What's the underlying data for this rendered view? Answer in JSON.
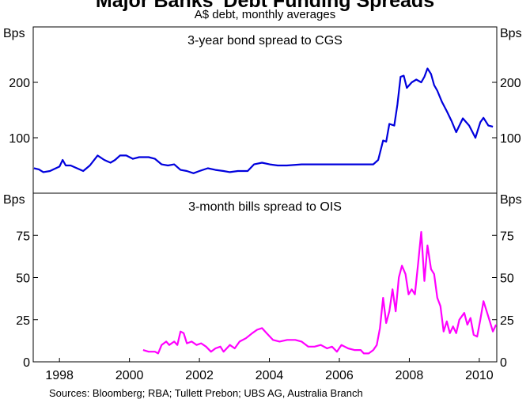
{
  "title": "Major Banks' Debt Funding Spreads",
  "subtitle": "A$ debt, monthly averages",
  "source": "Sources: Bloomberg; RBA; Tullett Prebon; UBS AG, Australia Branch",
  "chart_data": [
    {
      "type": "line",
      "title": "3-year bond spread to CGS",
      "y_label": "Bps",
      "xlim": [
        1997.75,
        2011.0
      ],
      "ylim": [
        0,
        300
      ],
      "yticks": [
        100,
        200
      ],
      "series": [
        {
          "name": "3-year bond spread to CGS",
          "color": "#0000dd",
          "x": [
            1997.77,
            1997.91,
            1998.04,
            1998.23,
            1998.36,
            1998.5,
            1998.59,
            1998.68,
            1998.82,
            1999.0,
            1999.18,
            1999.37,
            1999.59,
            1999.78,
            1999.96,
            2000.09,
            2000.23,
            2000.41,
            2000.6,
            2000.78,
            2001.05,
            2001.23,
            2001.42,
            2001.6,
            2001.78,
            2001.96,
            2002.14,
            2002.33,
            2002.5,
            2002.74,
            2002.96,
            2003.19,
            2003.37,
            2003.6,
            2003.88,
            2004.06,
            2004.29,
            2004.51,
            2004.74,
            2005.0,
            2005.42,
            2005.88,
            2006.34,
            2006.79,
            2007.25,
            2007.47,
            2007.61,
            2007.75,
            2007.84,
            2007.93,
            2008.07,
            2008.16,
            2008.25,
            2008.34,
            2008.43,
            2008.57,
            2008.7,
            2008.84,
            2008.93,
            2009.02,
            2009.12,
            2009.21,
            2009.3,
            2009.43,
            2009.57,
            2009.71,
            2009.84,
            2010.03,
            2010.21,
            2010.39,
            2010.53,
            2010.62,
            2010.76,
            2010.89
          ],
          "values": [
            45,
            43,
            38,
            40,
            44,
            48,
            60,
            50,
            50,
            45,
            40,
            50,
            68,
            60,
            55,
            60,
            68,
            68,
            62,
            65,
            65,
            62,
            52,
            50,
            52,
            42,
            40,
            36,
            40,
            45,
            42,
            40,
            38,
            40,
            40,
            52,
            55,
            52,
            50,
            50,
            52,
            52,
            52,
            52,
            52,
            52,
            60,
            95,
            93,
            125,
            122,
            160,
            210,
            212,
            190,
            200,
            205,
            200,
            210,
            225,
            215,
            195,
            185,
            165,
            148,
            130,
            110,
            135,
            122,
            100,
            128,
            136,
            122,
            120
          ]
        }
      ]
    },
    {
      "type": "line",
      "title": "3-month bills spread to OIS",
      "y_label": "Bps",
      "xlim": [
        1997.75,
        2011.0
      ],
      "ylim": [
        0,
        100
      ],
      "yticks": [
        0,
        25,
        50,
        75
      ],
      "xticks": [
        {
          "value": 1998.5,
          "label": "1998"
        },
        {
          "value": 2000.5,
          "label": "2000"
        },
        {
          "value": 2002.5,
          "label": "2002"
        },
        {
          "value": 2004.5,
          "label": "2004"
        },
        {
          "value": 2006.5,
          "label": "2006"
        },
        {
          "value": 2008.5,
          "label": "2008"
        },
        {
          "value": 2010.5,
          "label": "2010"
        }
      ],
      "series": [
        {
          "name": "3-month bills spread to OIS",
          "color": "#ff00ff",
          "x": [
            2000.89,
            2001.05,
            2001.23,
            2001.32,
            2001.42,
            2001.55,
            2001.64,
            2001.78,
            2001.87,
            2001.96,
            2002.05,
            2002.14,
            2002.28,
            2002.42,
            2002.55,
            2002.69,
            2002.83,
            2002.96,
            2003.1,
            2003.19,
            2003.37,
            2003.51,
            2003.65,
            2003.83,
            2004.01,
            2004.15,
            2004.29,
            2004.42,
            2004.6,
            2004.79,
            2005.01,
            2005.24,
            2005.42,
            2005.61,
            2005.79,
            2005.97,
            2006.15,
            2006.29,
            2006.43,
            2006.56,
            2006.75,
            2006.93,
            2007.11,
            2007.2,
            2007.34,
            2007.47,
            2007.57,
            2007.66,
            2007.75,
            2007.84,
            2007.93,
            2008.02,
            2008.11,
            2008.2,
            2008.29,
            2008.39,
            2008.48,
            2008.57,
            2008.66,
            2008.75,
            2008.84,
            2008.93,
            2009.02,
            2009.12,
            2009.21,
            2009.3,
            2009.39,
            2009.48,
            2009.57,
            2009.66,
            2009.75,
            2009.84,
            2009.93,
            2010.07,
            2010.16,
            2010.25,
            2010.34,
            2010.44,
            2010.53,
            2010.62,
            2010.71,
            2010.8,
            2010.89,
            2010.98
          ],
          "values": [
            7,
            6,
            6,
            5,
            10,
            12,
            10,
            12,
            10,
            18,
            17,
            11,
            12,
            10,
            11,
            9,
            6,
            8,
            9,
            6,
            10,
            8,
            12,
            14,
            17,
            19,
            20,
            17,
            13,
            12,
            13,
            13,
            12,
            9,
            9,
            10,
            8,
            9,
            6,
            10,
            8,
            7,
            7,
            5,
            5,
            7,
            10,
            20,
            38,
            23,
            30,
            43,
            30,
            50,
            57,
            52,
            40,
            43,
            40,
            58,
            77,
            48,
            69,
            55,
            52,
            38,
            33,
            18,
            24,
            17,
            21,
            17,
            25,
            29,
            22,
            26,
            16,
            15,
            25,
            36,
            30,
            24,
            18,
            22
          ]
        }
      ]
    }
  ]
}
